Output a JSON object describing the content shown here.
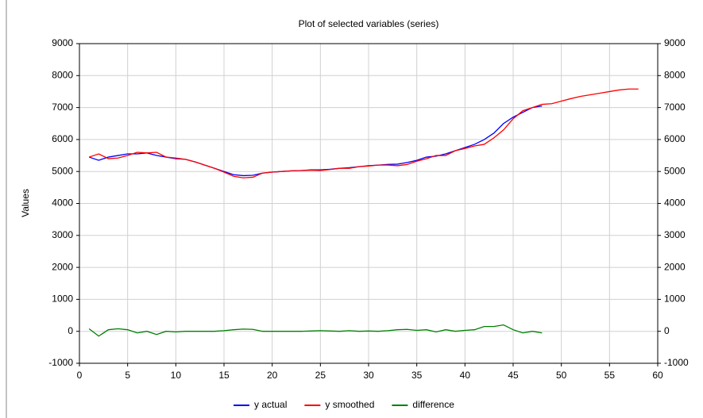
{
  "chart_data": {
    "type": "line",
    "title": "Plot of selected variables (series)",
    "ylabel": "Values",
    "x": [
      1,
      2,
      3,
      4,
      5,
      6,
      7,
      8,
      9,
      10,
      11,
      12,
      13,
      14,
      15,
      16,
      17,
      18,
      19,
      20,
      21,
      22,
      23,
      24,
      25,
      26,
      27,
      28,
      29,
      30,
      31,
      32,
      33,
      34,
      35,
      36,
      37,
      38,
      39,
      40,
      41,
      42,
      43,
      44,
      45,
      46,
      47,
      48,
      49,
      50,
      51,
      52,
      53,
      54,
      55,
      56,
      57,
      58
    ],
    "series": [
      {
        "name": "y actual",
        "color": "#0000ff",
        "values": [
          5450,
          5350,
          5450,
          5500,
          5550,
          5550,
          5580,
          5500,
          5450,
          5400,
          5380,
          5300,
          5200,
          5100,
          5000,
          4900,
          4870,
          4880,
          4950,
          4980,
          5000,
          5020,
          5030,
          5050,
          5050,
          5070,
          5100,
          5120,
          5150,
          5180,
          5200,
          5220,
          5230,
          5280,
          5350,
          5450,
          5480,
          5550,
          5650,
          5750,
          5850,
          6000,
          6200,
          6500,
          6700,
          6850,
          7000,
          7050,
          null,
          null,
          null,
          null,
          null,
          null,
          null,
          null,
          null,
          null
        ]
      },
      {
        "name": "y smoothed",
        "color": "#ff0000",
        "values": [
          5450,
          5550,
          5400,
          5420,
          5500,
          5600,
          5580,
          5600,
          5450,
          5420,
          5380,
          5300,
          5200,
          5100,
          4980,
          4850,
          4800,
          4820,
          4950,
          4980,
          5000,
          5020,
          5030,
          5040,
          5030,
          5060,
          5100,
          5100,
          5150,
          5170,
          5200,
          5200,
          5180,
          5220,
          5320,
          5400,
          5500,
          5500,
          5650,
          5720,
          5800,
          5850,
          6050,
          6300,
          6650,
          6900,
          7000,
          7100,
          7120,
          7200,
          7280,
          7350,
          7400,
          7450,
          7500,
          7550,
          7580,
          7580
        ]
      },
      {
        "name": "difference",
        "color": "#008000",
        "values": [
          80,
          -150,
          50,
          80,
          50,
          -50,
          0,
          -100,
          0,
          -20,
          0,
          0,
          0,
          0,
          20,
          50,
          70,
          60,
          0,
          0,
          0,
          0,
          0,
          10,
          20,
          10,
          0,
          20,
          0,
          10,
          0,
          20,
          50,
          60,
          30,
          50,
          -20,
          50,
          0,
          30,
          50,
          150,
          150,
          200,
          50,
          -50,
          0,
          -50,
          null,
          null,
          null,
          null,
          null,
          null,
          null,
          null,
          null,
          null
        ]
      }
    ],
    "xlim": [
      0,
      60
    ],
    "xticks": [
      0,
      5,
      10,
      15,
      20,
      25,
      30,
      35,
      40,
      45,
      50,
      55,
      60
    ],
    "ylim": [
      -1000,
      9000
    ],
    "yticks": [
      -1000,
      0,
      1000,
      2000,
      3000,
      4000,
      5000,
      6000,
      7000,
      8000,
      9000
    ],
    "y2lim": [
      -1000,
      9000
    ],
    "y2ticks": [
      -1000,
      0,
      1000,
      2000,
      3000,
      4000,
      5000,
      6000,
      7000,
      8000,
      9000
    ],
    "grid": true,
    "legend": "bottom"
  }
}
